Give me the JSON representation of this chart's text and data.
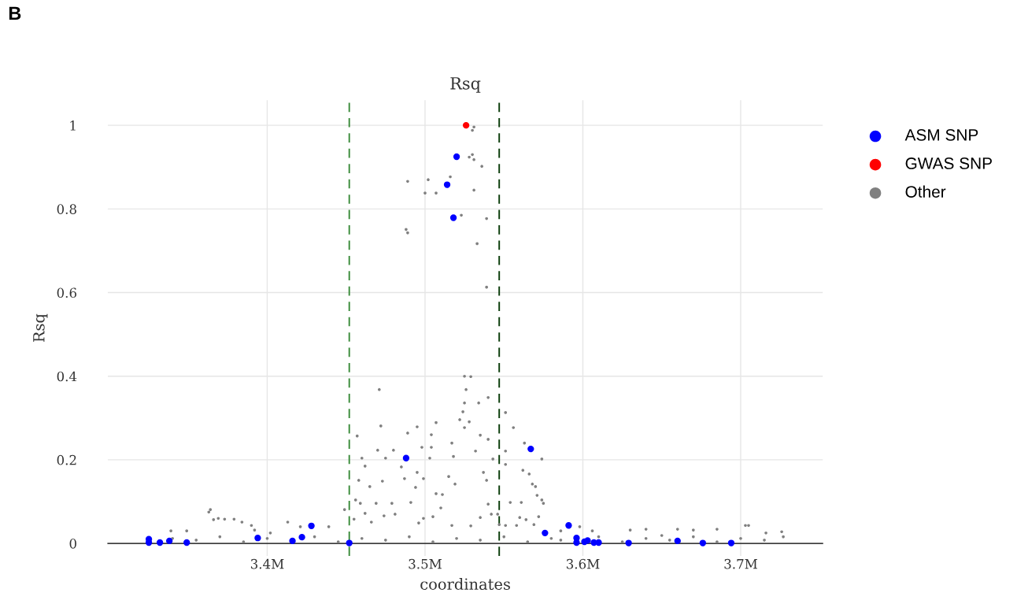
{
  "chart_data": {
    "type": "scatter",
    "title": "Rsq",
    "xlabel": "coordinates",
    "ylabel": "Rsq",
    "annotations": [
      "B"
    ],
    "xlim": [
      3299000,
      3752000
    ],
    "ylim": [
      -0.03,
      1.06
    ],
    "xticks": [
      {
        "value": 3400000,
        "label": "3.4M"
      },
      {
        "value": 3500000,
        "label": "3.5M"
      },
      {
        "value": 3600000,
        "label": "3.6M"
      },
      {
        "value": 3700000,
        "label": "3.7M"
      }
    ],
    "yticks": [
      0,
      0.2,
      0.4,
      0.6,
      0.8,
      1
    ],
    "grid": true,
    "legend": "top right",
    "marker": "circle",
    "ref_lines": [
      {
        "axis": "x",
        "value": 3452000,
        "color": "#3c8c3c",
        "line_style": "dashed"
      },
      {
        "axis": "x",
        "value": 3547000,
        "color": "#0b3d0b",
        "line_style": "dashed"
      }
    ],
    "series": [
      {
        "name": "ASM SNP",
        "color": "#0000ff",
        "x": [
          3520000,
          3514000,
          3518000,
          3488000,
          3567000,
          3325000,
          3325000,
          3332000,
          3338000,
          3349000,
          3394000,
          3416000,
          3422000,
          3428000,
          3452000,
          3576000,
          3591000,
          3596000,
          3596000,
          3601000,
          3603000,
          3607000,
          3610000,
          3629000,
          3660000,
          3676000,
          3694000
        ],
        "values": [
          0.925,
          0.858,
          0.779,
          0.204,
          0.226,
          0.01,
          0.002,
          0.002,
          0.006,
          0.002,
          0.013,
          0.006,
          0.015,
          0.042,
          0.001,
          0.025,
          0.043,
          0.013,
          0.002,
          0.004,
          0.007,
          0.002,
          0.002,
          0.001,
          0.006,
          0.001,
          0.001
        ]
      },
      {
        "name": "GWAS SNP",
        "color": "#ff0000",
        "x": [
          3526000
        ],
        "values": [
          1.0
        ]
      },
      {
        "name": "Other",
        "color": "#808080",
        "x": [
          3531000,
          3530000,
          3530000,
          3528000,
          3531000,
          3536000,
          3489000,
          3502000,
          3516000,
          3500000,
          3507000,
          3531000,
          3523000,
          3539000,
          3488000,
          3489000,
          3533000,
          3539000,
          3525000,
          3529000,
          3471000,
          3526000,
          3540000,
          3534000,
          3525000,
          3551000,
          3524000,
          3522000,
          3472000,
          3528000,
          3525000,
          3556000,
          3507000,
          3495000,
          3489000,
          3504000,
          3457000,
          3535000,
          3540000,
          3517000,
          3504000,
          3498000,
          3470000,
          3480000,
          3532000,
          3551000,
          3563000,
          3460000,
          3475000,
          3503000,
          3518000,
          3543000,
          3574000,
          3462000,
          3485000,
          3495000,
          3537000,
          3551000,
          3562000,
          3458000,
          3473000,
          3487000,
          3499000,
          3515000,
          3539000,
          3566000,
          3465000,
          3494000,
          3519000,
          3568000,
          3570000,
          3507000,
          3511000,
          3571000,
          3456000,
          3459000,
          3469000,
          3479000,
          3491000,
          3554000,
          3561000,
          3574000,
          3510000,
          3540000,
          3449000,
          3462000,
          3474000,
          3481000,
          3499000,
          3542000,
          3546000,
          3466000,
          3505000,
          3496000,
          3517000,
          3535000,
          3560000,
          3564000,
          3572000,
          3529000,
          3547000,
          3551000,
          3558000,
          3569000,
          3455000,
          3364000,
          3363000,
          3366000,
          3369000,
          3373000,
          3379000,
          3384000,
          3390000,
          3413000,
          3421000,
          3439000,
          3392000,
          3349000,
          3402000,
          3339000,
          3575000,
          3586000,
          3598000,
          3606000,
          3630000,
          3640000,
          3660000,
          3670000,
          3685000,
          3703000,
          3705000,
          3726000,
          3716000,
          3650000,
          3340000,
          3355000,
          3370000,
          3385000,
          3400000,
          3430000,
          3445000,
          3460000,
          3475000,
          3490000,
          3505000,
          3520000,
          3535000,
          3550000,
          3565000,
          3580000,
          3586000,
          3610000,
          3625000,
          3640000,
          3655000,
          3670000,
          3685000,
          3700000,
          3715000,
          3727000
        ],
        "values": [
          0.996,
          0.988,
          0.93,
          0.924,
          0.918,
          0.902,
          0.866,
          0.87,
          0.877,
          0.838,
          0.838,
          0.845,
          0.785,
          0.777,
          0.751,
          0.743,
          0.717,
          0.613,
          0.4,
          0.399,
          0.368,
          0.368,
          0.349,
          0.336,
          0.336,
          0.313,
          0.315,
          0.296,
          0.281,
          0.291,
          0.277,
          0.277,
          0.289,
          0.279,
          0.264,
          0.26,
          0.257,
          0.259,
          0.249,
          0.24,
          0.23,
          0.23,
          0.223,
          0.223,
          0.221,
          0.221,
          0.24,
          0.204,
          0.204,
          0.204,
          0.208,
          0.202,
          0.202,
          0.185,
          0.183,
          0.17,
          0.17,
          0.189,
          0.175,
          0.151,
          0.149,
          0.155,
          0.155,
          0.16,
          0.151,
          0.166,
          0.136,
          0.134,
          0.142,
          0.142,
          0.136,
          0.119,
          0.117,
          0.115,
          0.104,
          0.096,
          0.096,
          0.096,
          0.098,
          0.098,
          0.098,
          0.104,
          0.085,
          0.094,
          0.081,
          0.072,
          0.066,
          0.07,
          0.06,
          0.07,
          0.07,
          0.051,
          0.064,
          0.049,
          0.043,
          0.062,
          0.062,
          0.057,
          0.064,
          0.042,
          0.045,
          0.043,
          0.043,
          0.045,
          0.058,
          0.081,
          0.075,
          0.057,
          0.06,
          0.058,
          0.058,
          0.051,
          0.043,
          0.051,
          0.04,
          0.04,
          0.032,
          0.03,
          0.025,
          0.03,
          0.096,
          0.03,
          0.04,
          0.03,
          0.032,
          0.034,
          0.034,
          0.032,
          0.034,
          0.043,
          0.043,
          0.028,
          0.025,
          0.019,
          0.012,
          0.008,
          0.016,
          0.004,
          0.012,
          0.016,
          0.004,
          0.012,
          0.008,
          0.016,
          0.004,
          0.012,
          0.008,
          0.016,
          0.004,
          0.012,
          0.008,
          0.016,
          0.004,
          0.012,
          0.008,
          0.016,
          0.004,
          0.012,
          0.008,
          0.016
        ]
      }
    ]
  }
}
